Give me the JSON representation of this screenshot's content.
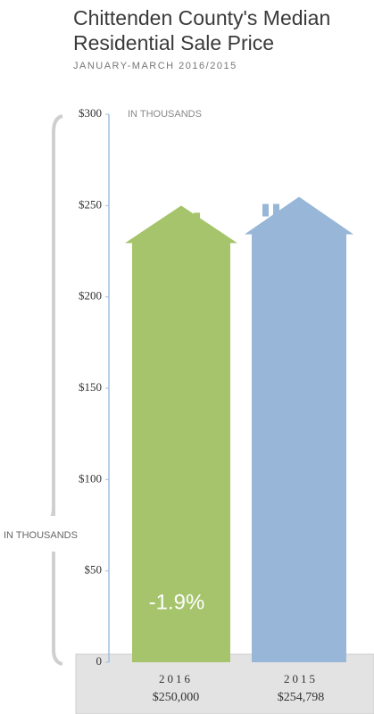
{
  "chart_data": {
    "type": "bar",
    "title_lines": [
      "Chittenden County's Median",
      "Residential Sale Price"
    ],
    "subtitle": "JANUARY-MARCH 2016/2015",
    "unit_labels": [
      "IN THOUSANDS",
      "IN THOUSANDS"
    ],
    "categories": [
      "2016",
      "2015"
    ],
    "values": [
      250,
      254.798
    ],
    "value_labels": [
      "$250,000",
      "$254,798"
    ],
    "colors": [
      "#a5c46b",
      "#98b6d8"
    ],
    "annotation": "-1.9%",
    "ylim": [
      0,
      300
    ],
    "yticks": [
      0,
      {
        "value": 50,
        "label": "$50"
      },
      {
        "value": 100,
        "label": "$100"
      },
      {
        "value": 150,
        "label": "$150"
      },
      {
        "value": 200,
        "label": "$200"
      },
      {
        "value": 250,
        "label": "$250"
      },
      {
        "value": 300,
        "label": "$300"
      }
    ]
  }
}
